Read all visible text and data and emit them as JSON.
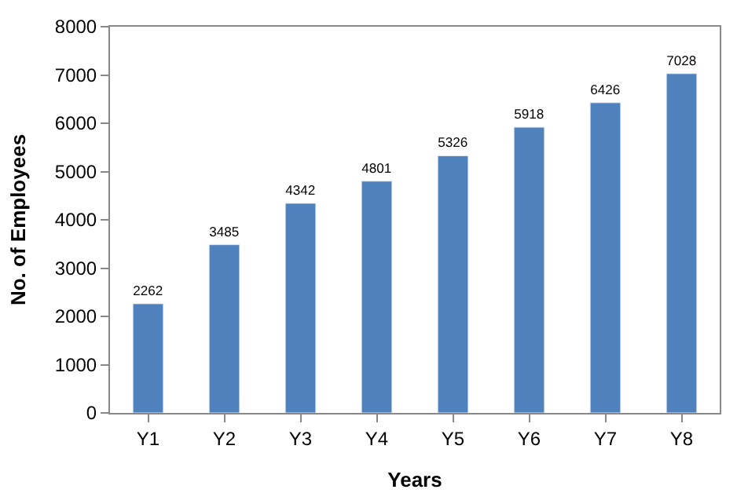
{
  "chart_data": {
    "type": "bar",
    "xlabel": "Years",
    "ylabel": "No. of Employees",
    "categories": [
      "Y1",
      "Y2",
      "Y3",
      "Y4",
      "Y5",
      "Y6",
      "Y7",
      "Y8"
    ],
    "values": [
      2262,
      3485,
      4342,
      4801,
      5326,
      5918,
      6426,
      7028
    ],
    "color": "#4f81bd",
    "ylim": [
      0,
      8000
    ],
    "yticks": [
      0,
      1000,
      2000,
      3000,
      4000,
      5000,
      6000,
      7000,
      8000
    ],
    "data_labels": true,
    "grid": false,
    "legend": false
  }
}
